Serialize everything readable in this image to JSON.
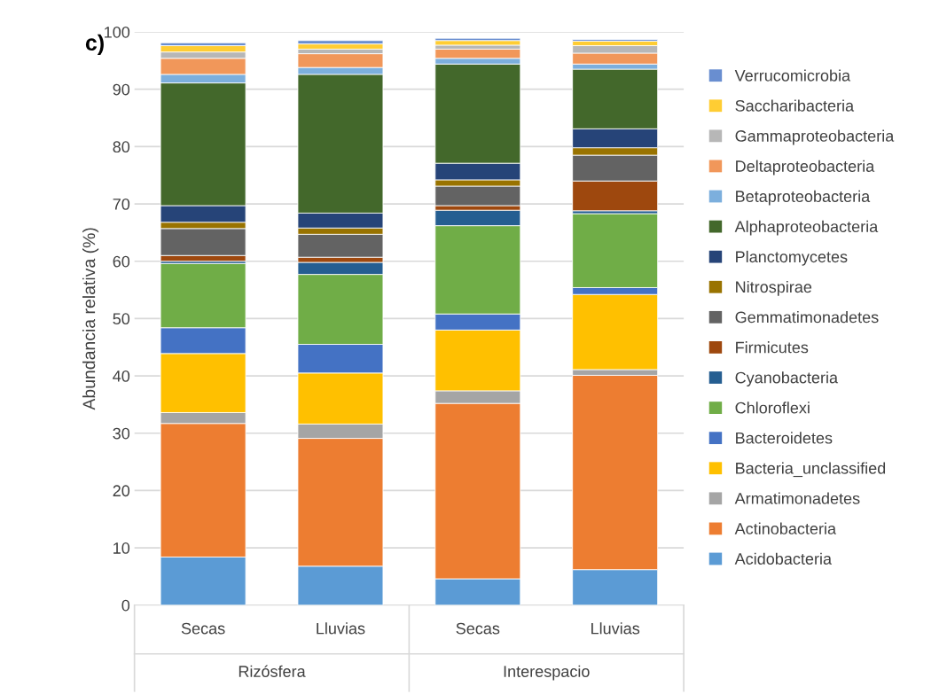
{
  "chart_data": {
    "type": "bar",
    "title": "c)",
    "ylabel": "Abundancia relativa (%)",
    "categories": [
      "Secas",
      "Lluvias",
      "Secas",
      "Lluvias"
    ],
    "annotations": [
      "Rizósfera",
      "Interespacio"
    ],
    "stacked": true,
    "ylim": [
      0,
      100
    ],
    "yticks": [
      0,
      10,
      20,
      30,
      40,
      50,
      60,
      70,
      80,
      90,
      100
    ],
    "grid": "y",
    "legend": "right",
    "series": [
      {
        "name": "Acidobacteria",
        "color": "#5b9bd5",
        "values": [
          8.4,
          6.8,
          4.6,
          6.2
        ]
      },
      {
        "name": "Actinobacteria",
        "color": "#ed7d31",
        "values": [
          23.3,
          22.3,
          30.6,
          33.9
        ]
      },
      {
        "name": "Armatimonadetes",
        "color": "#a5a5a5",
        "values": [
          1.9,
          2.5,
          2.2,
          1.0
        ]
      },
      {
        "name": "Bacteria_unclassified",
        "color": "#ffc000",
        "values": [
          10.3,
          8.9,
          10.6,
          13.1
        ]
      },
      {
        "name": "Bacteroidetes",
        "color": "#4472c4",
        "values": [
          4.5,
          5.0,
          2.8,
          1.2
        ]
      },
      {
        "name": "Chloroflexi",
        "color": "#70ad47",
        "values": [
          11.2,
          12.2,
          15.4,
          12.9
        ]
      },
      {
        "name": "Cyanobacteria",
        "color": "#255e91",
        "values": [
          0.4,
          2.1,
          2.7,
          0.5
        ]
      },
      {
        "name": "Firmicutes",
        "color": "#9e480e",
        "values": [
          1.0,
          0.9,
          0.8,
          5.2
        ]
      },
      {
        "name": "Gemmatimonadetes",
        "color": "#636363",
        "values": [
          4.7,
          4.0,
          3.4,
          4.5
        ]
      },
      {
        "name": "Nitrospirae",
        "color": "#997300",
        "values": [
          1.1,
          1.1,
          1.1,
          1.3
        ]
      },
      {
        "name": "Planctomycetes",
        "color": "#264478",
        "values": [
          2.9,
          2.6,
          2.9,
          3.3
        ]
      },
      {
        "name": "Alphaproteobacteria",
        "color": "#43682b",
        "values": [
          21.4,
          24.2,
          17.3,
          10.4
        ]
      },
      {
        "name": "Betaproteobacteria",
        "color": "#7cafdd",
        "values": [
          1.5,
          1.2,
          1.0,
          0.9
        ]
      },
      {
        "name": "Deltaproteobacteria",
        "color": "#f1975a",
        "values": [
          2.8,
          2.4,
          1.6,
          1.9
        ]
      },
      {
        "name": "Gammaproteobacteria",
        "color": "#b7b7b7",
        "values": [
          1.1,
          0.8,
          0.7,
          1.3
        ]
      },
      {
        "name": "Saccharibacteria",
        "color": "#ffcd33",
        "values": [
          1.1,
          0.9,
          0.8,
          0.8
        ]
      },
      {
        "name": "Verrucomicrobia",
        "color": "#698ed0",
        "values": [
          0.5,
          0.6,
          0.4,
          0.3
        ]
      }
    ]
  }
}
